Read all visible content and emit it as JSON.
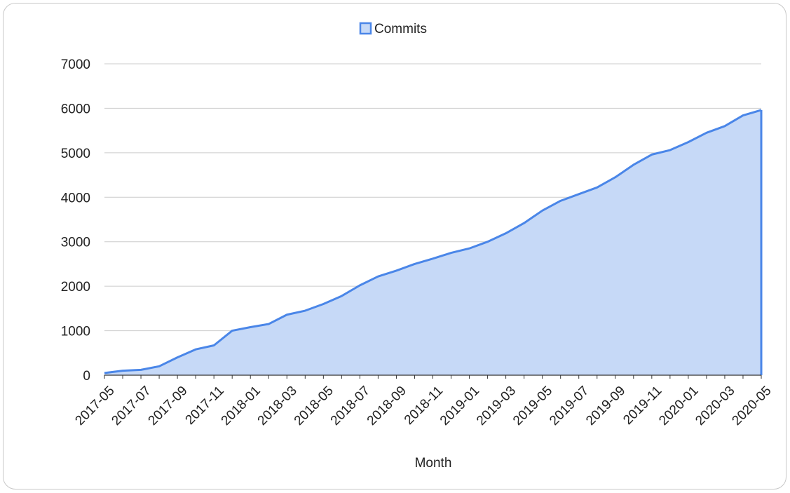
{
  "chart_data": {
    "type": "area",
    "xlabel": "Month",
    "ylabel": "",
    "ylim": [
      0,
      7000
    ],
    "yticks": [
      0,
      1000,
      2000,
      3000,
      4000,
      5000,
      6000,
      7000
    ],
    "grid": true,
    "legend_position": "top-center",
    "colors": {
      "line": "#4a86e8",
      "fill": "#c6d9f7",
      "grid": "#cccccc"
    },
    "x": [
      "2017-05",
      "2017-06",
      "2017-07",
      "2017-08",
      "2017-09",
      "2017-10",
      "2017-11",
      "2017-12",
      "2018-01",
      "2018-02",
      "2018-03",
      "2018-04",
      "2018-05",
      "2018-06",
      "2018-07",
      "2018-08",
      "2018-09",
      "2018-10",
      "2018-11",
      "2018-12",
      "2019-01",
      "2019-02",
      "2019-03",
      "2019-04",
      "2019-05",
      "2019-06",
      "2019-07",
      "2019-08",
      "2019-09",
      "2019-10",
      "2019-11",
      "2019-12",
      "2020-01",
      "2020-02",
      "2020-03",
      "2020-04",
      "2020-05"
    ],
    "xtick_labels": [
      "2017-05",
      "2017-07",
      "2017-09",
      "2017-11",
      "2018-01",
      "2018-03",
      "2018-05",
      "2018-07",
      "2018-09",
      "2018-11",
      "2019-01",
      "2019-03",
      "2019-05",
      "2019-07",
      "2019-09",
      "2019-11",
      "2020-01",
      "2020-03",
      "2020-05"
    ],
    "series": [
      {
        "name": "Commits",
        "values": [
          50,
          100,
          120,
          200,
          400,
          580,
          670,
          1000,
          1080,
          1150,
          1360,
          1450,
          1600,
          1780,
          2020,
          2220,
          2350,
          2500,
          2620,
          2750,
          2850,
          3000,
          3190,
          3420,
          3700,
          3920,
          4070,
          4220,
          4450,
          4730,
          4960,
          5060,
          5240,
          5450,
          5600,
          5840,
          5960
        ]
      }
    ]
  }
}
